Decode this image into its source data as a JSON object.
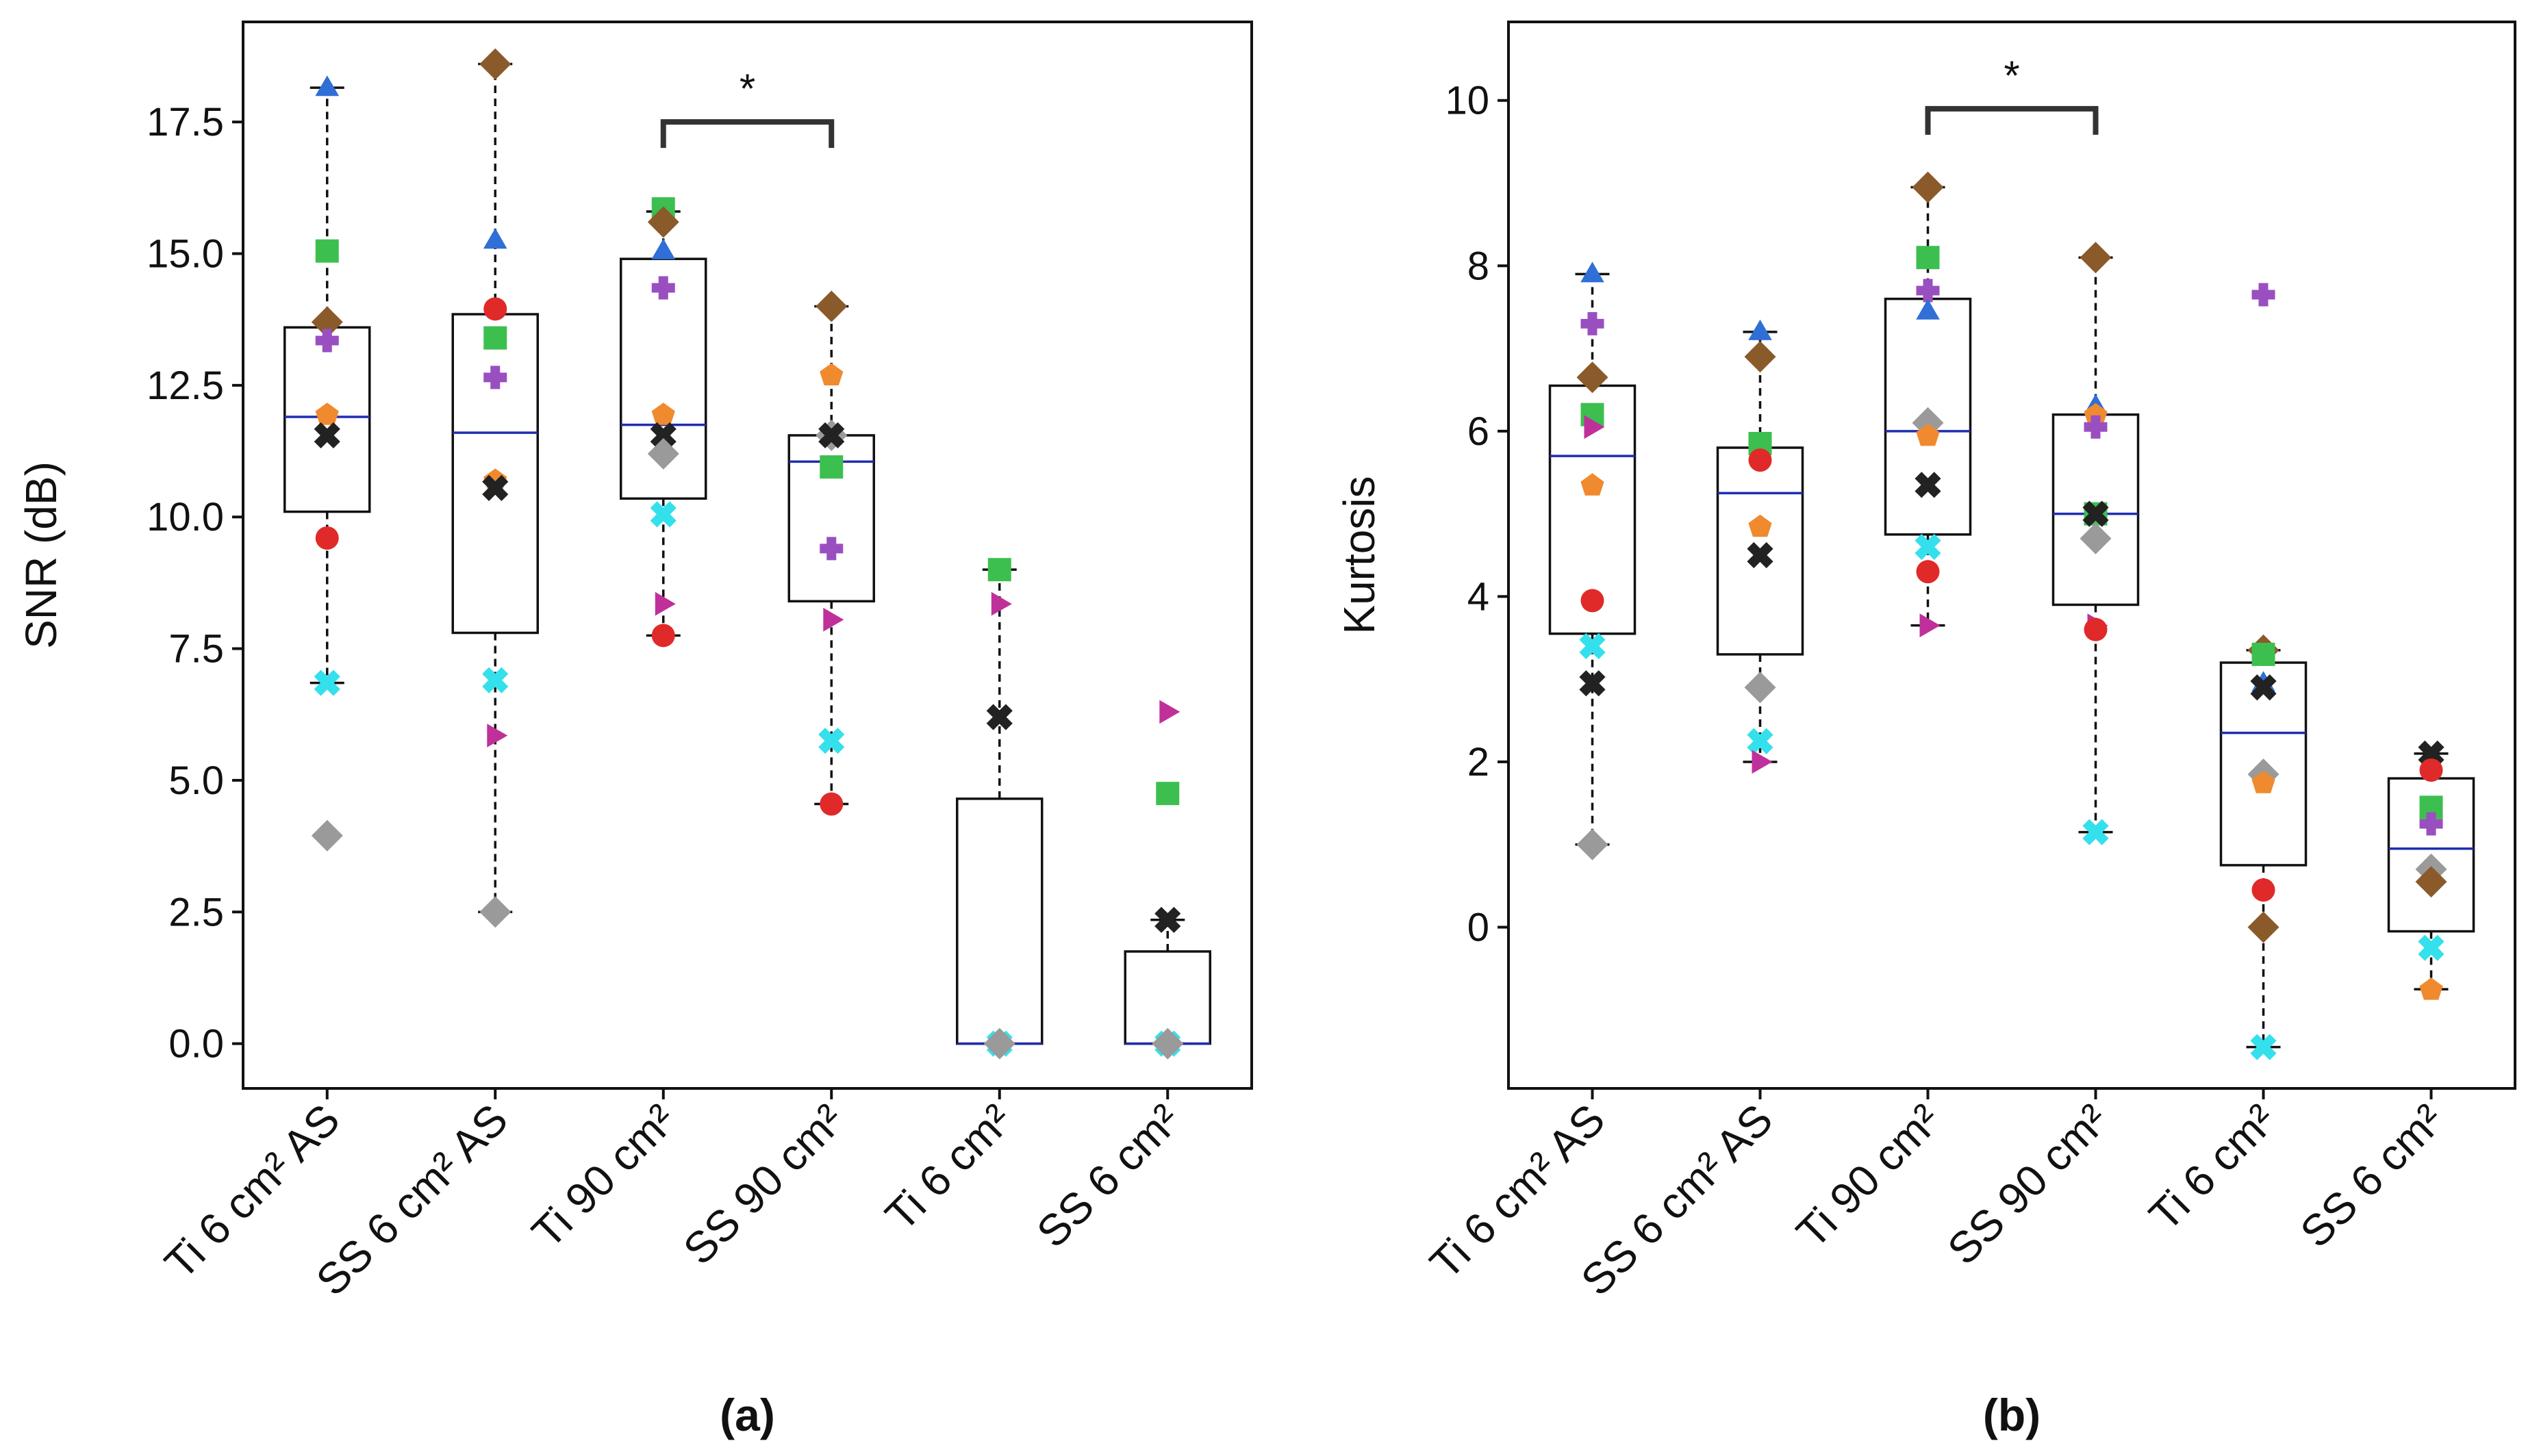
{
  "chart_data": [
    {
      "type": "box",
      "panel_label": "(a)",
      "ylabel": "SNR (dB)",
      "ylim": [
        -0.85,
        19.4
      ],
      "yticks": [
        0.0,
        2.5,
        5.0,
        7.5,
        10.0,
        12.5,
        15.0,
        17.5
      ],
      "ytick_labels": [
        "0.0",
        "2.5",
        "5.0",
        "7.5",
        "10.0",
        "12.5",
        "15.0",
        "17.5"
      ],
      "categories": [
        "Ti 6 cm² AS",
        "SS 6 cm² AS",
        "Ti 90 cm²",
        "SS 90 cm²",
        "Ti 6 cm²",
        "SS 6 cm²"
      ],
      "grid": false,
      "boxes": [
        {
          "whislo": 6.85,
          "q1": 10.1,
          "med": 11.9,
          "q3": 13.6,
          "whishi": 18.15
        },
        {
          "whislo": 2.5,
          "q1": 7.8,
          "med": 11.6,
          "q3": 13.85,
          "whishi": 18.6
        },
        {
          "whislo": 7.75,
          "q1": 10.35,
          "med": 11.75,
          "q3": 14.9,
          "whishi": 15.8
        },
        {
          "whislo": 4.55,
          "q1": 8.4,
          "med": 11.05,
          "q3": 11.55,
          "whishi": 14.0
        },
        {
          "whislo": 0.0,
          "q1": 0.0,
          "med": 0.0,
          "q3": 4.65,
          "whishi": 9.0
        },
        {
          "whislo": 0.0,
          "q1": 0.0,
          "med": 0.0,
          "q3": 1.75,
          "whishi": 2.35
        }
      ],
      "points": [
        [
          {
            "marker": "triangle",
            "value": 18.15
          },
          {
            "marker": "square",
            "value": 15.05
          },
          {
            "marker": "diamond-brown",
            "value": 13.7
          },
          {
            "marker": "plus",
            "value": 13.35
          },
          {
            "marker": "pentagon",
            "value": 11.95
          },
          {
            "marker": "x-black",
            "value": 11.55
          },
          {
            "marker": "circle",
            "value": 9.6
          },
          {
            "marker": "x-cyan",
            "value": 6.85
          },
          {
            "marker": "diamond-gray",
            "value": 3.95
          }
        ],
        [
          {
            "marker": "diamond-brown",
            "value": 18.6
          },
          {
            "marker": "triangle",
            "value": 15.25
          },
          {
            "marker": "circle",
            "value": 13.95
          },
          {
            "marker": "square",
            "value": 13.4
          },
          {
            "marker": "plus",
            "value": 12.65
          },
          {
            "marker": "pentagon",
            "value": 10.7
          },
          {
            "marker": "x-black",
            "value": 10.55
          },
          {
            "marker": "x-cyan",
            "value": 6.9
          },
          {
            "marker": "right-triangle",
            "value": 5.85
          },
          {
            "marker": "diamond-gray",
            "value": 2.5
          }
        ],
        [
          {
            "marker": "square",
            "value": 15.85
          },
          {
            "marker": "diamond-brown",
            "value": 15.6
          },
          {
            "marker": "triangle",
            "value": 15.05
          },
          {
            "marker": "plus",
            "value": 14.35
          },
          {
            "marker": "pentagon",
            "value": 11.95
          },
          {
            "marker": "x-black",
            "value": 11.55
          },
          {
            "marker": "diamond-gray",
            "value": 11.2
          },
          {
            "marker": "x-cyan",
            "value": 10.05
          },
          {
            "marker": "right-triangle",
            "value": 8.35
          },
          {
            "marker": "circle",
            "value": 7.75
          }
        ],
        [
          {
            "marker": "diamond-brown",
            "value": 14.0
          },
          {
            "marker": "pentagon",
            "value": 12.7
          },
          {
            "marker": "diamond-gray",
            "value": 11.55
          },
          {
            "marker": "x-black",
            "value": 11.55
          },
          {
            "marker": "square",
            "value": 10.95
          },
          {
            "marker": "plus",
            "value": 9.4
          },
          {
            "marker": "right-triangle",
            "value": 8.05
          },
          {
            "marker": "x-cyan",
            "value": 5.75
          },
          {
            "marker": "circle",
            "value": 4.55
          }
        ],
        [
          {
            "marker": "square",
            "value": 9.0
          },
          {
            "marker": "right-triangle",
            "value": 8.35
          },
          {
            "marker": "x-black",
            "value": 6.2
          },
          {
            "marker": "x-cyan",
            "value": 0.0
          },
          {
            "marker": "diamond-gray",
            "value": 0.0
          }
        ],
        [
          {
            "marker": "right-triangle",
            "value": 6.3
          },
          {
            "marker": "square",
            "value": 4.75
          },
          {
            "marker": "x-black",
            "value": 2.35
          },
          {
            "marker": "x-cyan",
            "value": 0.0
          },
          {
            "marker": "diamond-gray",
            "value": 0.0
          }
        ]
      ],
      "significance": {
        "from": 2,
        "to": 3,
        "level": 17.5,
        "label": "*"
      }
    },
    {
      "type": "box",
      "panel_label": "(b)",
      "ylabel": "Kurtosis",
      "ylim": [
        -1.95,
        10.95
      ],
      "yticks": [
        0,
        2,
        4,
        6,
        8,
        10
      ],
      "ytick_labels": [
        "0",
        "2",
        "4",
        "6",
        "8",
        "10"
      ],
      "categories": [
        "Ti 6 cm² AS",
        "SS 6 cm² AS",
        "Ti 90 cm²",
        "SS 90 cm²",
        "Ti 6 cm²",
        "SS 6 cm²"
      ],
      "grid": false,
      "boxes": [
        {
          "whislo": 1.0,
          "q1": 3.55,
          "med": 5.7,
          "q3": 6.55,
          "whishi": 7.9
        },
        {
          "whislo": 2.0,
          "q1": 3.3,
          "med": 5.25,
          "q3": 5.8,
          "whishi": 7.2
        },
        {
          "whislo": 3.65,
          "q1": 4.75,
          "med": 6.0,
          "q3": 7.6,
          "whishi": 8.95
        },
        {
          "whislo": 1.15,
          "q1": 3.9,
          "med": 5.0,
          "q3": 6.2,
          "whishi": 8.1
        },
        {
          "whislo": -1.45,
          "q1": 0.75,
          "med": 2.35,
          "q3": 3.2,
          "whishi": 3.35
        },
        {
          "whislo": -0.75,
          "q1": -0.05,
          "med": 0.95,
          "q3": 1.8,
          "whishi": 2.1
        }
      ],
      "points": [
        [
          {
            "marker": "triangle",
            "value": 7.9
          },
          {
            "marker": "plus",
            "value": 7.3
          },
          {
            "marker": "diamond-brown",
            "value": 6.65
          },
          {
            "marker": "square",
            "value": 6.2
          },
          {
            "marker": "right-triangle",
            "value": 6.05
          },
          {
            "marker": "pentagon",
            "value": 5.35
          },
          {
            "marker": "circle",
            "value": 3.95
          },
          {
            "marker": "x-cyan",
            "value": 3.4
          },
          {
            "marker": "x-black",
            "value": 2.95
          },
          {
            "marker": "diamond-gray",
            "value": 1.0
          }
        ],
        [
          {
            "marker": "triangle",
            "value": 7.2
          },
          {
            "marker": "diamond-brown",
            "value": 6.9
          },
          {
            "marker": "square",
            "value": 5.85
          },
          {
            "marker": "circle",
            "value": 5.65
          },
          {
            "marker": "pentagon",
            "value": 4.85
          },
          {
            "marker": "x-black",
            "value": 4.5
          },
          {
            "marker": "diamond-gray",
            "value": 2.9
          },
          {
            "marker": "x-cyan",
            "value": 2.25
          },
          {
            "marker": "right-triangle",
            "value": 2.0
          }
        ],
        [
          {
            "marker": "diamond-brown",
            "value": 8.95
          },
          {
            "marker": "square",
            "value": 8.1
          },
          {
            "marker": "plus",
            "value": 7.7
          },
          {
            "marker": "triangle",
            "value": 7.45
          },
          {
            "marker": "diamond-gray",
            "value": 6.1
          },
          {
            "marker": "pentagon",
            "value": 5.95
          },
          {
            "marker": "x-black",
            "value": 5.35
          },
          {
            "marker": "x-cyan",
            "value": 4.6
          },
          {
            "marker": "circle",
            "value": 4.3
          },
          {
            "marker": "right-triangle",
            "value": 3.65
          }
        ],
        [
          {
            "marker": "diamond-brown",
            "value": 8.1
          },
          {
            "marker": "triangle",
            "value": 6.3
          },
          {
            "marker": "pentagon",
            "value": 6.2
          },
          {
            "marker": "plus",
            "value": 6.05
          },
          {
            "marker": "square",
            "value": 5.0
          },
          {
            "marker": "x-black",
            "value": 5.0
          },
          {
            "marker": "diamond-gray",
            "value": 4.7
          },
          {
            "marker": "right-triangle",
            "value": 3.65
          },
          {
            "marker": "circle",
            "value": 3.6
          },
          {
            "marker": "x-cyan",
            "value": 1.15
          }
        ],
        [
          {
            "marker": "plus",
            "value": 7.65
          },
          {
            "marker": "diamond-brown",
            "value": 3.35
          },
          {
            "marker": "square",
            "value": 3.3
          },
          {
            "marker": "triangle",
            "value": 2.95
          },
          {
            "marker": "x-black",
            "value": 2.9
          },
          {
            "marker": "diamond-gray",
            "value": 1.85
          },
          {
            "marker": "pentagon",
            "value": 1.75
          },
          {
            "marker": "circle",
            "value": 0.45
          },
          {
            "marker": "diamond-brown",
            "value": 0.0
          },
          {
            "marker": "x-cyan",
            "value": -1.45
          }
        ],
        [
          {
            "marker": "x-black",
            "value": 2.1
          },
          {
            "marker": "circle",
            "value": 1.9
          },
          {
            "marker": "square",
            "value": 1.45
          },
          {
            "marker": "plus",
            "value": 1.25
          },
          {
            "marker": "diamond-gray",
            "value": 0.7
          },
          {
            "marker": "diamond-brown",
            "value": 0.55
          },
          {
            "marker": "x-cyan",
            "value": -0.25
          },
          {
            "marker": "pentagon",
            "value": -0.75
          }
        ]
      ],
      "significance": {
        "from": 2,
        "to": 3,
        "level": 9.9,
        "label": "*"
      }
    }
  ],
  "colors": {
    "triangle": "#2f6fd6",
    "square": "#3cbf4f",
    "diamond-brown": "#8b5a2b",
    "plus": "#9a4fc0",
    "pentagon": "#f08a2e",
    "x-black": "#222222",
    "circle": "#e02a2a",
    "x-cyan": "#34e0ec",
    "diamond-gray": "#9a9a9a",
    "right-triangle": "#c0309a",
    "median": "#1f2db0",
    "box": "#111111",
    "bracket": "#333333"
  }
}
